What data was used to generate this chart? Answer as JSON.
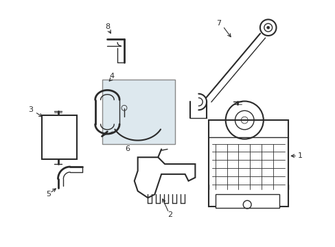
{
  "background_color": "#ffffff",
  "line_color": "#2a2a2a",
  "light_fill": "#dde8ee",
  "border_color": "#888888",
  "figsize": [
    4.89,
    3.6
  ],
  "dpi": 100
}
